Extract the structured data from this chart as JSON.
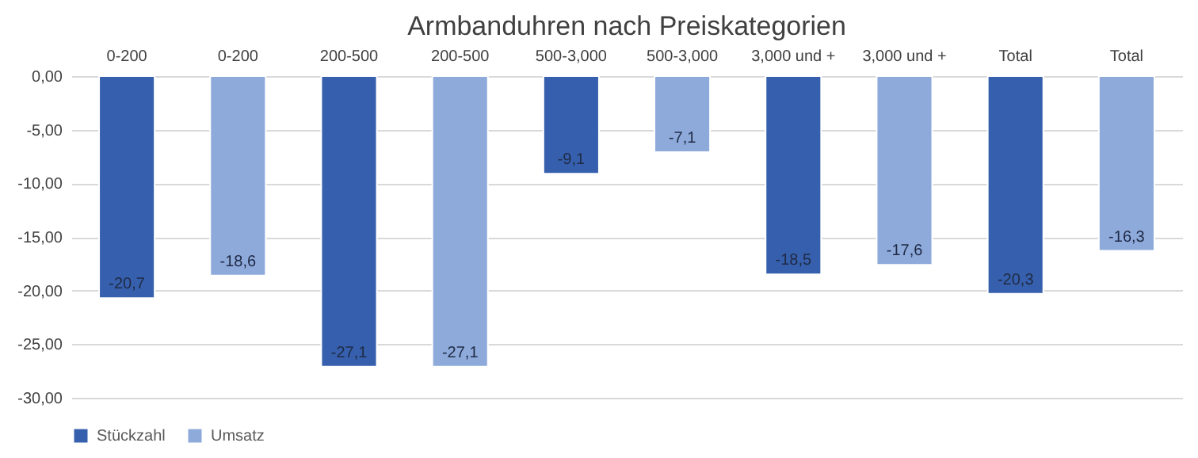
{
  "chart_data": {
    "type": "bar",
    "title": "Armbanduhren nach Preiskategorien",
    "categories": [
      "0-200",
      "0-200",
      "200-500",
      "200-500",
      "500-3,000",
      "500-3,000",
      "3,000 und +",
      "3,000 und +",
      "Total",
      "Total"
    ],
    "series": [
      {
        "name": "Stückzahl",
        "color": "#3660ad",
        "values": [
          -20.7,
          null,
          -27.1,
          null,
          -9.1,
          null,
          -18.5,
          null,
          -20.3,
          null
        ],
        "value_labels": [
          "-20,7",
          null,
          "-27,1",
          null,
          "-9,1",
          null,
          "-18,5",
          null,
          "-20,3",
          null
        ]
      },
      {
        "name": "Umsatz",
        "color": "#8eaadb",
        "values": [
          null,
          -18.6,
          null,
          -27.1,
          null,
          -7.1,
          null,
          -17.6,
          null,
          -16.3
        ],
        "value_labels": [
          null,
          "-18,6",
          null,
          "-27,1",
          null,
          "-7,1",
          null,
          "-17,6",
          null,
          "-16,3"
        ]
      }
    ],
    "ylim": [
      -30,
      0
    ],
    "yticks": [
      {
        "value": 0,
        "label": "0,00"
      },
      {
        "value": -5,
        "label": "-5,00"
      },
      {
        "value": -10,
        "label": "-10,00"
      },
      {
        "value": -15,
        "label": "-15,00"
      },
      {
        "value": -20,
        "label": "-20,00"
      },
      {
        "value": -25,
        "label": "-25,00"
      },
      {
        "value": -30,
        "label": "-30,00"
      }
    ],
    "grid": "y",
    "legend": "bottom"
  }
}
